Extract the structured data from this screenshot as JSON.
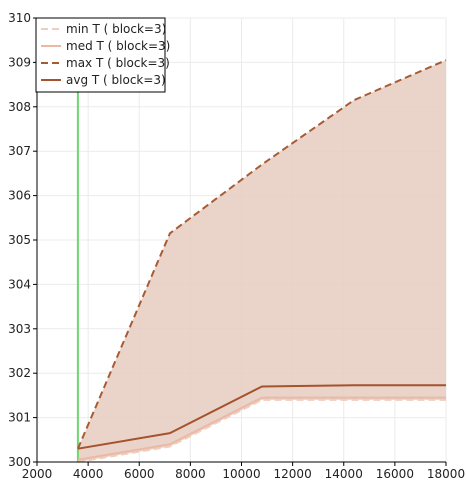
{
  "chart_data": {
    "type": "line",
    "xlim": [
      2000,
      18000
    ],
    "ylim": [
      300,
      310
    ],
    "x_ticks": [
      2000,
      4000,
      6000,
      8000,
      10000,
      12000,
      14000,
      16000,
      18000
    ],
    "y_ticks": [
      300,
      301,
      302,
      303,
      304,
      305,
      306,
      307,
      308,
      309,
      310
    ],
    "grid": true,
    "legend_position": "top-left",
    "vertical_marker": {
      "x": 3600,
      "color": "#6fd66f"
    },
    "band": {
      "lower_series": "min",
      "upper_series": "max",
      "color": "#e8cfc3"
    },
    "x": [
      3600,
      7200,
      10800,
      14400,
      18000
    ],
    "series": [
      {
        "key": "min",
        "name": "min T ( block=3)",
        "color": "#f0cdbd",
        "style": "dashed",
        "values": [
          300.0,
          300.35,
          301.4,
          301.4,
          301.4
        ]
      },
      {
        "key": "med",
        "name": "med T ( block=3)",
        "color": "#eab9a6",
        "style": "solid",
        "values": [
          300.05,
          300.4,
          301.45,
          301.45,
          301.45
        ]
      },
      {
        "key": "max",
        "name": "max T ( block=3)",
        "color": "#a65c33",
        "style": "dashed",
        "values": [
          300.3,
          305.15,
          306.7,
          308.15,
          309.05
        ]
      },
      {
        "key": "avg",
        "name": "avg T ( block=3)",
        "color": "#a5522e",
        "style": "solid",
        "values": [
          300.3,
          300.65,
          301.7,
          301.73,
          301.73
        ]
      }
    ]
  }
}
